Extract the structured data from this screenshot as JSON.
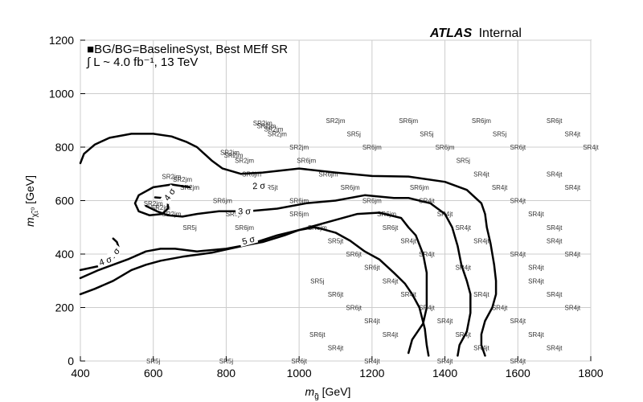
{
  "chart_data": {
    "type": "contour",
    "xlabel": "m_g̃ [GeV]",
    "ylabel": "m_χ̃₁⁰ [GeV]",
    "xlim": [
      400,
      1800
    ],
    "ylim": [
      0,
      1200
    ],
    "xticks": [
      400,
      600,
      800,
      1000,
      1200,
      1400,
      1600,
      1800
    ],
    "yticks": [
      0,
      200,
      400,
      600,
      800,
      1000,
      1200
    ],
    "grid": true,
    "header": {
      "atlas": "ATLAS",
      "atlas_suffix": "Internal"
    },
    "legend": {
      "marker": "■",
      "line1": "BG/BG=BaselineSyst, Best MEff SR",
      "line2": "∫ L ~ 4.0 fb⁻¹, 13 TeV"
    },
    "contours": [
      {
        "label": "2 σ",
        "label_pos": [
          890,
          650
        ],
        "label_rot": -3,
        "points": [
          [
            400,
            740
          ],
          [
            410,
            775
          ],
          [
            440,
            810
          ],
          [
            480,
            835
          ],
          [
            540,
            850
          ],
          [
            600,
            850
          ],
          [
            650,
            840
          ],
          [
            690,
            820
          ],
          [
            720,
            800
          ],
          [
            760,
            750
          ],
          [
            790,
            720
          ],
          [
            840,
            700
          ],
          [
            900,
            705
          ],
          [
            1000,
            720
          ],
          [
            1100,
            705
          ],
          [
            1200,
            692
          ],
          [
            1300,
            690
          ],
          [
            1400,
            670
          ],
          [
            1460,
            640
          ],
          [
            1500,
            590
          ],
          [
            1510,
            550
          ],
          [
            1515,
            500
          ],
          [
            1525,
            440
          ],
          [
            1535,
            360
          ],
          [
            1540,
            300
          ],
          [
            1540,
            250
          ],
          [
            1530,
            200
          ],
          [
            1510,
            150
          ],
          [
            1500,
            100
          ],
          [
            1500,
            60
          ],
          [
            1510,
            20
          ]
        ]
      },
      {
        "label": "2 σ",
        "label_pos": [
          495,
          397
        ],
        "label_rot": -50,
        "points": [
          [
            400,
            340
          ],
          [
            450,
            355
          ],
          [
            480,
            380
          ],
          [
            500,
            400
          ],
          [
            505,
            425
          ],
          [
            500,
            445
          ],
          [
            490,
            458
          ]
        ]
      },
      {
        "label": "3 σ",
        "label_pos": [
          850,
          555
        ],
        "label_rot": 0,
        "points": [
          [
            580,
            580
          ],
          [
            610,
            560
          ],
          [
            640,
            545
          ],
          [
            680,
            540
          ],
          [
            720,
            550
          ],
          [
            780,
            560
          ],
          [
            860,
            560
          ],
          [
            940,
            570
          ],
          [
            1020,
            590
          ],
          [
            1100,
            600
          ],
          [
            1180,
            620
          ],
          [
            1260,
            610
          ],
          [
            1300,
            610
          ],
          [
            1360,
            590
          ],
          [
            1400,
            550
          ],
          [
            1420,
            500
          ],
          [
            1435,
            430
          ],
          [
            1445,
            360
          ],
          [
            1460,
            300
          ],
          [
            1470,
            250
          ],
          [
            1470,
            180
          ],
          [
            1460,
            110
          ],
          [
            1440,
            60
          ],
          [
            1435,
            20
          ]
        ]
      },
      {
        "label": "4 σ",
        "label_pos": [
          470,
          370
        ],
        "label_rot": -20,
        "points": [
          [
            400,
            310
          ],
          [
            450,
            340
          ],
          [
            530,
            380
          ],
          [
            580,
            410
          ],
          [
            620,
            420
          ],
          [
            660,
            420
          ],
          [
            720,
            410
          ],
          [
            800,
            420
          ],
          [
            900,
            445
          ],
          [
            960,
            470
          ],
          [
            1000,
            490
          ],
          [
            1080,
            520
          ],
          [
            1160,
            550
          ],
          [
            1220,
            555
          ],
          [
            1280,
            535
          ],
          [
            1300,
            500
          ],
          [
            1320,
            470
          ],
          [
            1340,
            400
          ],
          [
            1350,
            330
          ],
          [
            1350,
            200
          ],
          [
            1340,
            140
          ],
          [
            1310,
            80
          ],
          [
            1300,
            30
          ]
        ]
      },
      {
        "label": "4 σ",
        "label_pos": [
          648,
          620
        ],
        "label_rot": -55,
        "points": [
          [
            700,
            650
          ],
          [
            650,
            660
          ],
          [
            600,
            650
          ],
          [
            560,
            620
          ],
          [
            550,
            590
          ],
          [
            560,
            560
          ],
          [
            590,
            545
          ],
          [
            625,
            550
          ],
          [
            640,
            570
          ],
          [
            640,
            595
          ],
          [
            625,
            610
          ],
          [
            605,
            612
          ]
        ]
      },
      {
        "label": "5 σ",
        "label_pos": [
          862,
          447
        ],
        "label_rot": -15,
        "points": [
          [
            400,
            250
          ],
          [
            440,
            270
          ],
          [
            490,
            300
          ],
          [
            540,
            340
          ],
          [
            580,
            360
          ],
          [
            620,
            375
          ],
          [
            680,
            390
          ],
          [
            760,
            405
          ],
          [
            860,
            435
          ],
          [
            940,
            470
          ],
          [
            1000,
            490
          ],
          [
            1040,
            500
          ],
          [
            1060,
            495
          ],
          [
            1100,
            480
          ],
          [
            1140,
            450
          ],
          [
            1180,
            410
          ],
          [
            1220,
            380
          ],
          [
            1260,
            330
          ],
          [
            1290,
            290
          ],
          [
            1310,
            250
          ],
          [
            1330,
            200
          ],
          [
            1345,
            120
          ],
          [
            1350,
            60
          ],
          [
            1355,
            20
          ]
        ]
      }
    ],
    "sr_labels": [
      {
        "t": "SR5j",
        "x": 600,
        "y": 0
      },
      {
        "t": "SR5j",
        "x": 800,
        "y": 0
      },
      {
        "t": "SR6jt",
        "x": 1000,
        "y": 0
      },
      {
        "t": "SR4jt",
        "x": 1200,
        "y": 0
      },
      {
        "t": "SR4jt",
        "x": 1400,
        "y": 0
      },
      {
        "t": "SR4jt",
        "x": 1600,
        "y": 0
      },
      {
        "t": "SR4jt",
        "x": 1100,
        "y": 50
      },
      {
        "t": "SR4jt",
        "x": 1500,
        "y": 50
      },
      {
        "t": "SR4jt",
        "x": 1700,
        "y": 50
      },
      {
        "t": "SR6jt",
        "x": 1050,
        "y": 100
      },
      {
        "t": "SR4jt",
        "x": 1250,
        "y": 100
      },
      {
        "t": "SR4jt",
        "x": 1450,
        "y": 100
      },
      {
        "t": "SR4jt",
        "x": 1650,
        "y": 100
      },
      {
        "t": "SR4jt",
        "x": 1200,
        "y": 150
      },
      {
        "t": "SR4jt",
        "x": 1400,
        "y": 150
      },
      {
        "t": "SR4jt",
        "x": 1600,
        "y": 150
      },
      {
        "t": "SR6jt",
        "x": 1150,
        "y": 200
      },
      {
        "t": "SR4jt",
        "x": 1350,
        "y": 200
      },
      {
        "t": "SR4jt",
        "x": 1550,
        "y": 200
      },
      {
        "t": "SR4jt",
        "x": 1750,
        "y": 200
      },
      {
        "t": "SR6jt",
        "x": 1100,
        "y": 250
      },
      {
        "t": "SR4jt",
        "x": 1300,
        "y": 250
      },
      {
        "t": "SR4jt",
        "x": 1500,
        "y": 250
      },
      {
        "t": "SR4jt",
        "x": 1700,
        "y": 250
      },
      {
        "t": "SR5j",
        "x": 1050,
        "y": 300
      },
      {
        "t": "SR4jt",
        "x": 1250,
        "y": 300
      },
      {
        "t": "SR4jt",
        "x": 1650,
        "y": 300
      },
      {
        "t": "SR6jt",
        "x": 1200,
        "y": 350
      },
      {
        "t": "SR4jt",
        "x": 1450,
        "y": 350
      },
      {
        "t": "SR4jt",
        "x": 1650,
        "y": 350
      },
      {
        "t": "SR6jt",
        "x": 1150,
        "y": 400
      },
      {
        "t": "SR4jt",
        "x": 1350,
        "y": 400
      },
      {
        "t": "SR4jt",
        "x": 1600,
        "y": 400
      },
      {
        "t": "SR4jt",
        "x": 1750,
        "y": 400
      },
      {
        "t": "SR5jt",
        "x": 1100,
        "y": 450
      },
      {
        "t": "SR4jt",
        "x": 1300,
        "y": 450
      },
      {
        "t": "SR4jt",
        "x": 1500,
        "y": 450
      },
      {
        "t": "SR4jt",
        "x": 1700,
        "y": 450
      },
      {
        "t": "SR5j",
        "x": 700,
        "y": 500
      },
      {
        "t": "SR6jm",
        "x": 850,
        "y": 500
      },
      {
        "t": "SR6jm",
        "x": 1050,
        "y": 500
      },
      {
        "t": "SR6jt",
        "x": 1250,
        "y": 500
      },
      {
        "t": "SR4jt",
        "x": 1450,
        "y": 500
      },
      {
        "t": "SR4jt",
        "x": 1700,
        "y": 500
      },
      {
        "t": "SR2jm",
        "x": 650,
        "y": 550
      },
      {
        "t": "SR5jt",
        "x": 820,
        "y": 550
      },
      {
        "t": "SR6jm",
        "x": 1000,
        "y": 550
      },
      {
        "t": "SR6jm",
        "x": 1240,
        "y": 550
      },
      {
        "t": "SR4jt",
        "x": 1400,
        "y": 550
      },
      {
        "t": "SR4jt",
        "x": 1650,
        "y": 550
      },
      {
        "t": "SR2jm",
        "x": 620,
        "y": 575
      },
      {
        "t": "SR2jm",
        "x": 600,
        "y": 590
      },
      {
        "t": "SR6jm",
        "x": 790,
        "y": 600
      },
      {
        "t": "SR6jm",
        "x": 1000,
        "y": 600
      },
      {
        "t": "SR6jm",
        "x": 1200,
        "y": 600
      },
      {
        "t": "SR4jt",
        "x": 1350,
        "y": 600
      },
      {
        "t": "SR4jt",
        "x": 1600,
        "y": 600
      },
      {
        "t": "SR2jm",
        "x": 700,
        "y": 650
      },
      {
        "t": "SR5jt",
        "x": 920,
        "y": 650
      },
      {
        "t": "SR6jm",
        "x": 1140,
        "y": 650
      },
      {
        "t": "SR6jm",
        "x": 1330,
        "y": 650
      },
      {
        "t": "SR4jt",
        "x": 1550,
        "y": 650
      },
      {
        "t": "SR4jt",
        "x": 1750,
        "y": 650
      },
      {
        "t": "SR2jm",
        "x": 650,
        "y": 690
      },
      {
        "t": "SR2jm",
        "x": 680,
        "y": 680
      },
      {
        "t": "SR6jm",
        "x": 870,
        "y": 700
      },
      {
        "t": "SR6jm",
        "x": 1080,
        "y": 700
      },
      {
        "t": "SR4jt",
        "x": 1500,
        "y": 700
      },
      {
        "t": "SR4jt",
        "x": 1700,
        "y": 700
      },
      {
        "t": "SR2jm",
        "x": 850,
        "y": 750
      },
      {
        "t": "SR6jm",
        "x": 1020,
        "y": 750
      },
      {
        "t": "SR5j",
        "x": 1450,
        "y": 750
      },
      {
        "t": "SR2jm",
        "x": 810,
        "y": 780
      },
      {
        "t": "SR2jm",
        "x": 820,
        "y": 770
      },
      {
        "t": "SR2jm",
        "x": 1000,
        "y": 800
      },
      {
        "t": "SR6jm",
        "x": 1200,
        "y": 800
      },
      {
        "t": "SR6jm",
        "x": 1400,
        "y": 800
      },
      {
        "t": "SR6jt",
        "x": 1600,
        "y": 800
      },
      {
        "t": "SR4jt",
        "x": 1800,
        "y": 800
      },
      {
        "t": "SR2jm",
        "x": 940,
        "y": 850
      },
      {
        "t": "SR5j",
        "x": 1150,
        "y": 850
      },
      {
        "t": "SR5j",
        "x": 1350,
        "y": 850
      },
      {
        "t": "SR5j",
        "x": 1550,
        "y": 850
      },
      {
        "t": "SR4jt",
        "x": 1750,
        "y": 850
      },
      {
        "t": "SR2jm",
        "x": 910,
        "y": 880
      },
      {
        "t": "SR2jm",
        "x": 930,
        "y": 868
      },
      {
        "t": "SR2jm",
        "x": 900,
        "y": 890
      },
      {
        "t": "SR2jm",
        "x": 1100,
        "y": 900
      },
      {
        "t": "SR6jm",
        "x": 1300,
        "y": 900
      },
      {
        "t": "SR6jm",
        "x": 1500,
        "y": 900
      },
      {
        "t": "SR6jt",
        "x": 1700,
        "y": 900
      }
    ]
  }
}
